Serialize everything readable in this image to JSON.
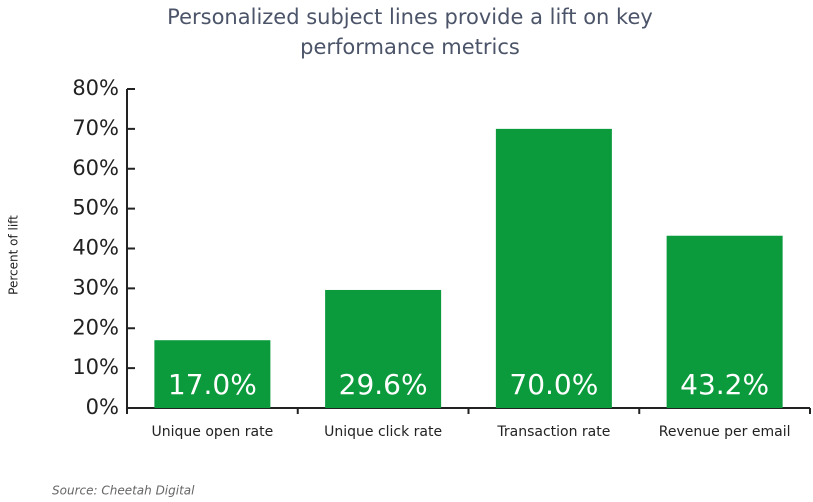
{
  "chart_data": {
    "type": "bar",
    "title": "Personalized subject lines provide a lift on key performance metrics",
    "ylabel": "Percent of lift",
    "categories": [
      "Unique open rate",
      "Unique click rate",
      "Transaction rate",
      "Revenue per email"
    ],
    "values": [
      17.0,
      29.6,
      70.0,
      43.2
    ],
    "value_labels": [
      "17.0%",
      "29.6%",
      "70.0%",
      "43.2%"
    ],
    "color": "#0b9a3c",
    "ylim": [
      0,
      80
    ],
    "yticks": [
      {
        "value": 0,
        "label": "0%"
      },
      {
        "value": 10,
        "label": "10%"
      },
      {
        "value": 20,
        "label": "20%"
      },
      {
        "value": 30,
        "label": "30%"
      },
      {
        "value": 40,
        "label": "40%"
      },
      {
        "value": 50,
        "label": "50%"
      },
      {
        "value": 60,
        "label": "60%"
      },
      {
        "value": 70,
        "label": "70%"
      },
      {
        "value": 80,
        "label": "80%"
      }
    ],
    "source": "Source: Cheetah Digital"
  }
}
